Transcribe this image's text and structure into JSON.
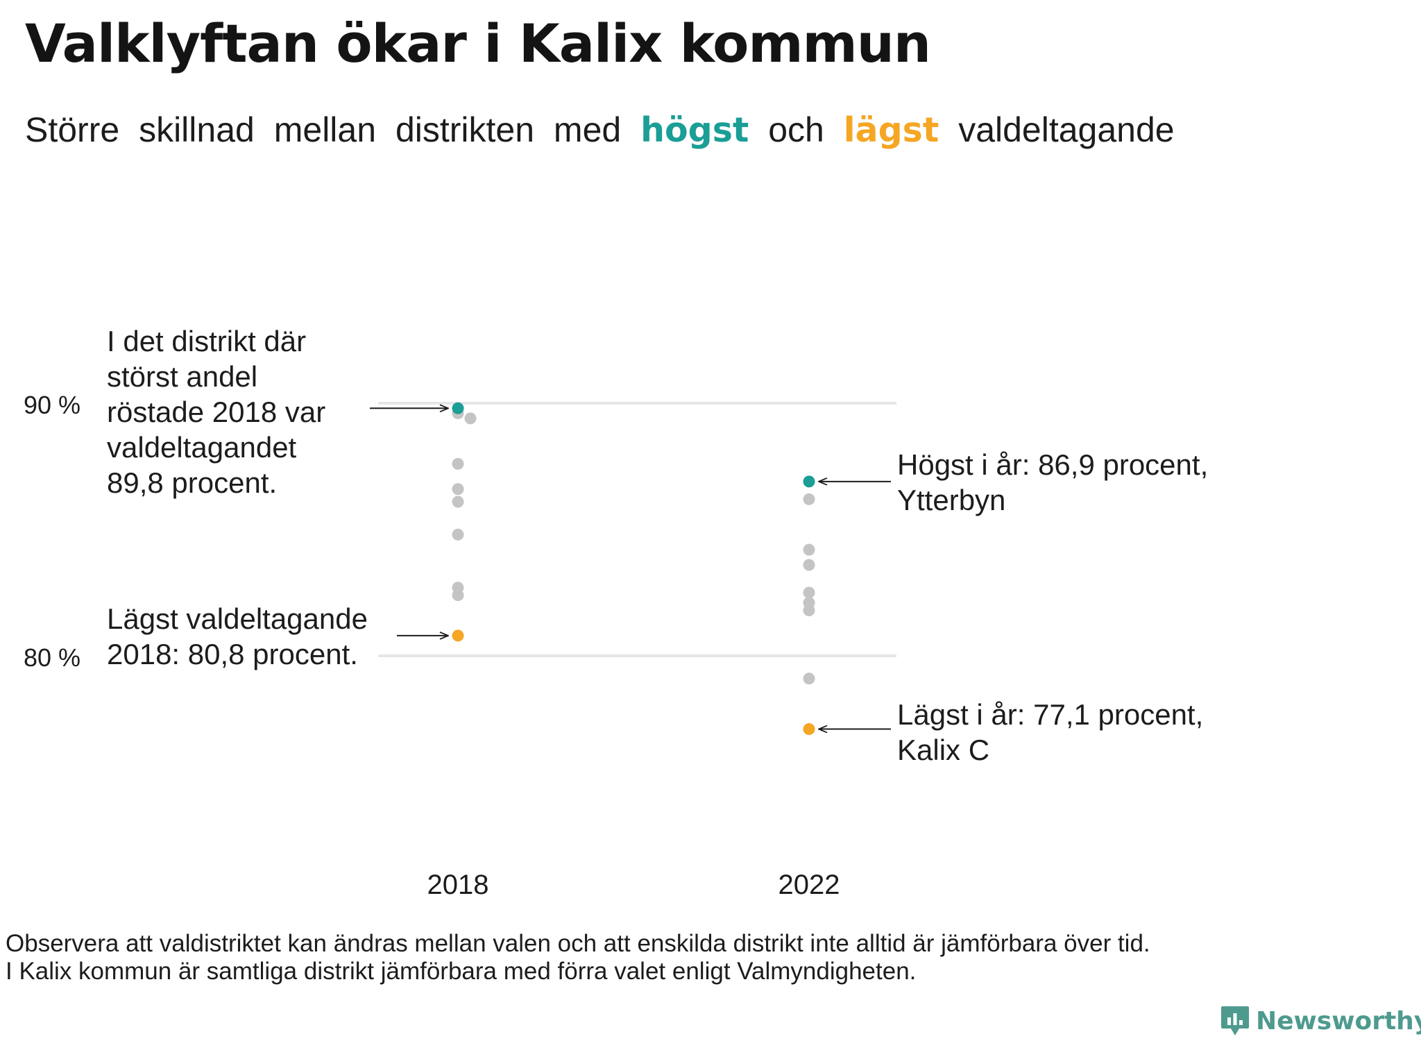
{
  "title": "Valklyftan ökar i Kalix kommun",
  "subtitle": {
    "words_before": [
      "Större",
      "skillnad",
      "mellan",
      "distrikten",
      "med"
    ],
    "highest_word": "högst",
    "and_word": "och",
    "lowest_word": "lägst",
    "word_after": "valdeltagande"
  },
  "colors": {
    "highest": "#1a9e96",
    "lowest": "#f5a623",
    "other": "#c4c4c4",
    "gridline": "#e6e6e6"
  },
  "chart_data": {
    "type": "scatter",
    "categories": [
      "2018",
      "2022"
    ],
    "ylabel": "",
    "yticks": [
      {
        "value": 80,
        "label": "80 %"
      },
      {
        "value": 90,
        "label": "90 %"
      }
    ],
    "ylim": [
      73.5,
      93
    ],
    "series": [
      {
        "name": "2018",
        "highest": 89.8,
        "lowest": 80.8,
        "others": [
          89.6,
          89.4,
          87.6,
          86.6,
          86.1,
          84.8,
          82.7,
          82.4
        ]
      },
      {
        "name": "2022",
        "highest": 86.9,
        "lowest": 77.1,
        "others": [
          86.2,
          84.2,
          83.6,
          82.5,
          82.1,
          81.8,
          79.1
        ]
      }
    ],
    "annotations": [
      {
        "id": "2018-highest",
        "lines": [
          "I det distrikt där",
          "störst andel",
          "röstade 2018 var",
          "valdeltagandet",
          "89,8 procent."
        ]
      },
      {
        "id": "2018-lowest",
        "lines": [
          "Lägst valdeltagande",
          "2018: 80,8 procent."
        ]
      },
      {
        "id": "2022-highest",
        "lines": [
          "Högst i år: 86,9 procent,",
          "Ytterbyn"
        ]
      },
      {
        "id": "2022-lowest",
        "lines": [
          "Lägst i år: 77,1 procent,",
          "Kalix C"
        ]
      }
    ]
  },
  "footnote": [
    "Observera att valdistriktet kan ändras mellan valen och att enskilda distrikt inte alltid är jämförbara över tid.",
    "I Kalix kommun är samtliga distrikt jämförbara med förra valet enligt Valmyndigheten."
  ],
  "logo": {
    "text": "Newsworthy",
    "icon": "newsworthy-logo-icon"
  }
}
